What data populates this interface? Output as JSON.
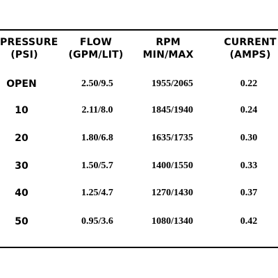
{
  "headers": {
    "pressure": [
      "PRESSURE",
      "(PSI)"
    ],
    "flow": [
      "FLOW",
      "(GPM/LIT)"
    ],
    "rpm": [
      "RPM",
      "MIN/MAX"
    ],
    "current": [
      "CURRENT",
      "(AMPS)"
    ]
  },
  "rows": [
    {
      "pressure": "OPEN",
      "flow": "2.50/9.5",
      "rpm": "1955/2065",
      "current": "0.22"
    },
    {
      "pressure": "10",
      "flow": "2.11/8.0",
      "rpm": "1845/1940",
      "current": "0.24"
    },
    {
      "pressure": "20",
      "flow": "1.80/6.8",
      "rpm": "1635/1735",
      "current": "0.30"
    },
    {
      "pressure": "30",
      "flow": "1.50/5.7",
      "rpm": "1400/1550",
      "current": "0.33"
    },
    {
      "pressure": "40",
      "flow": "1.25/4.7",
      "rpm": "1270/1430",
      "current": "0.37"
    },
    {
      "pressure": "50",
      "flow": "0.95/3.6",
      "rpm": "1080/1340",
      "current": "0.42"
    }
  ]
}
